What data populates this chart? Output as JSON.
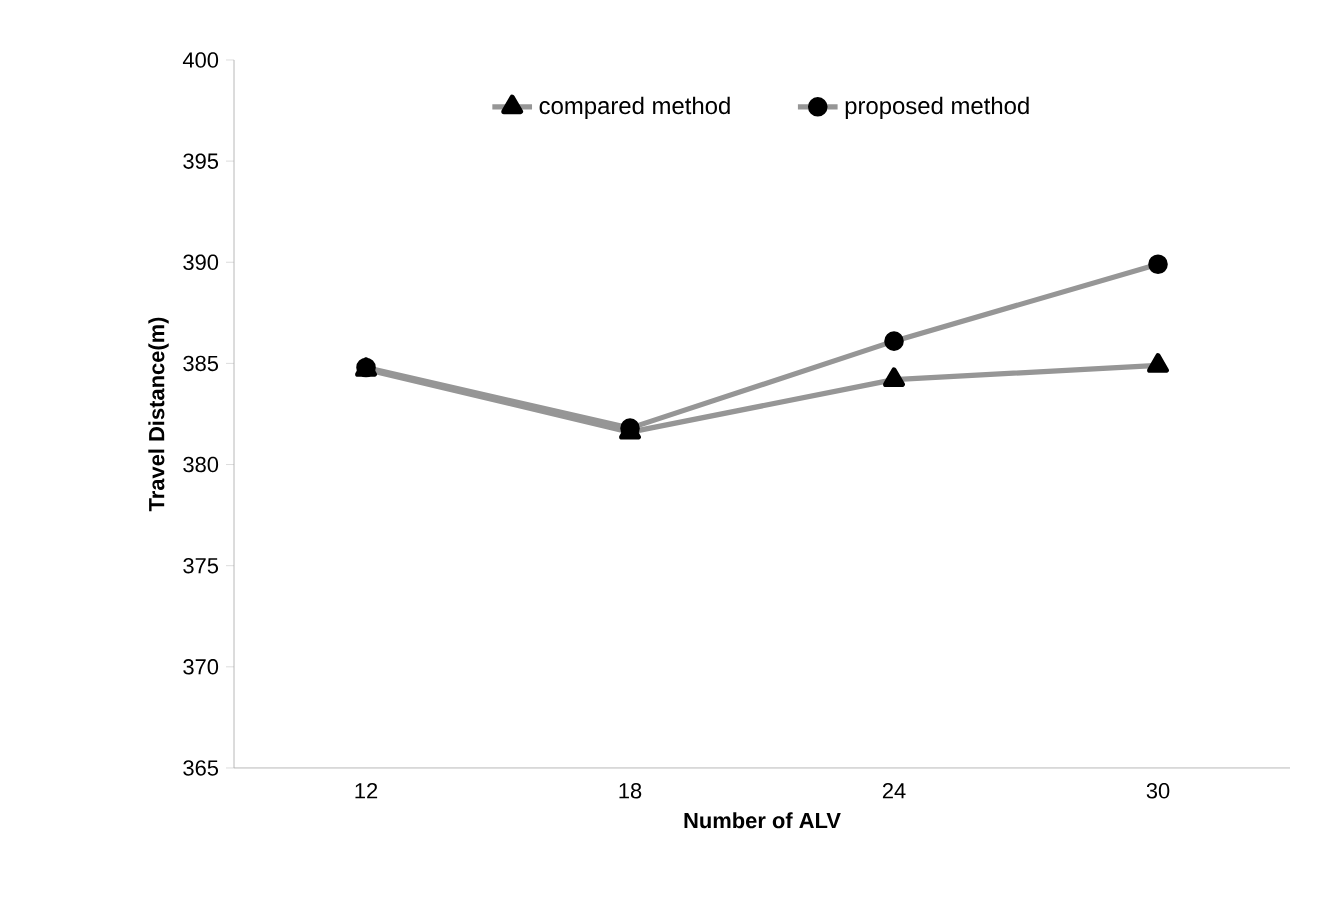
{
  "chart_data": {
    "type": "line",
    "xlabel": "Number of ALV",
    "ylabel": "Travel Distance(m)",
    "categories": [
      "12",
      "18",
      "24",
      "30"
    ],
    "series": [
      {
        "name": "compared method",
        "color": "#969696",
        "marker": "triangle",
        "values": [
          384.7,
          381.6,
          384.2,
          384.9
        ]
      },
      {
        "name": "proposed method",
        "color": "#969696",
        "marker": "circle",
        "values": [
          384.8,
          381.8,
          386.1,
          389.9
        ]
      }
    ],
    "ylim": [
      365,
      400
    ],
    "yticks": [
      365,
      370,
      375,
      380,
      385,
      390,
      395,
      400
    ],
    "legend": "top",
    "grid": false
  }
}
